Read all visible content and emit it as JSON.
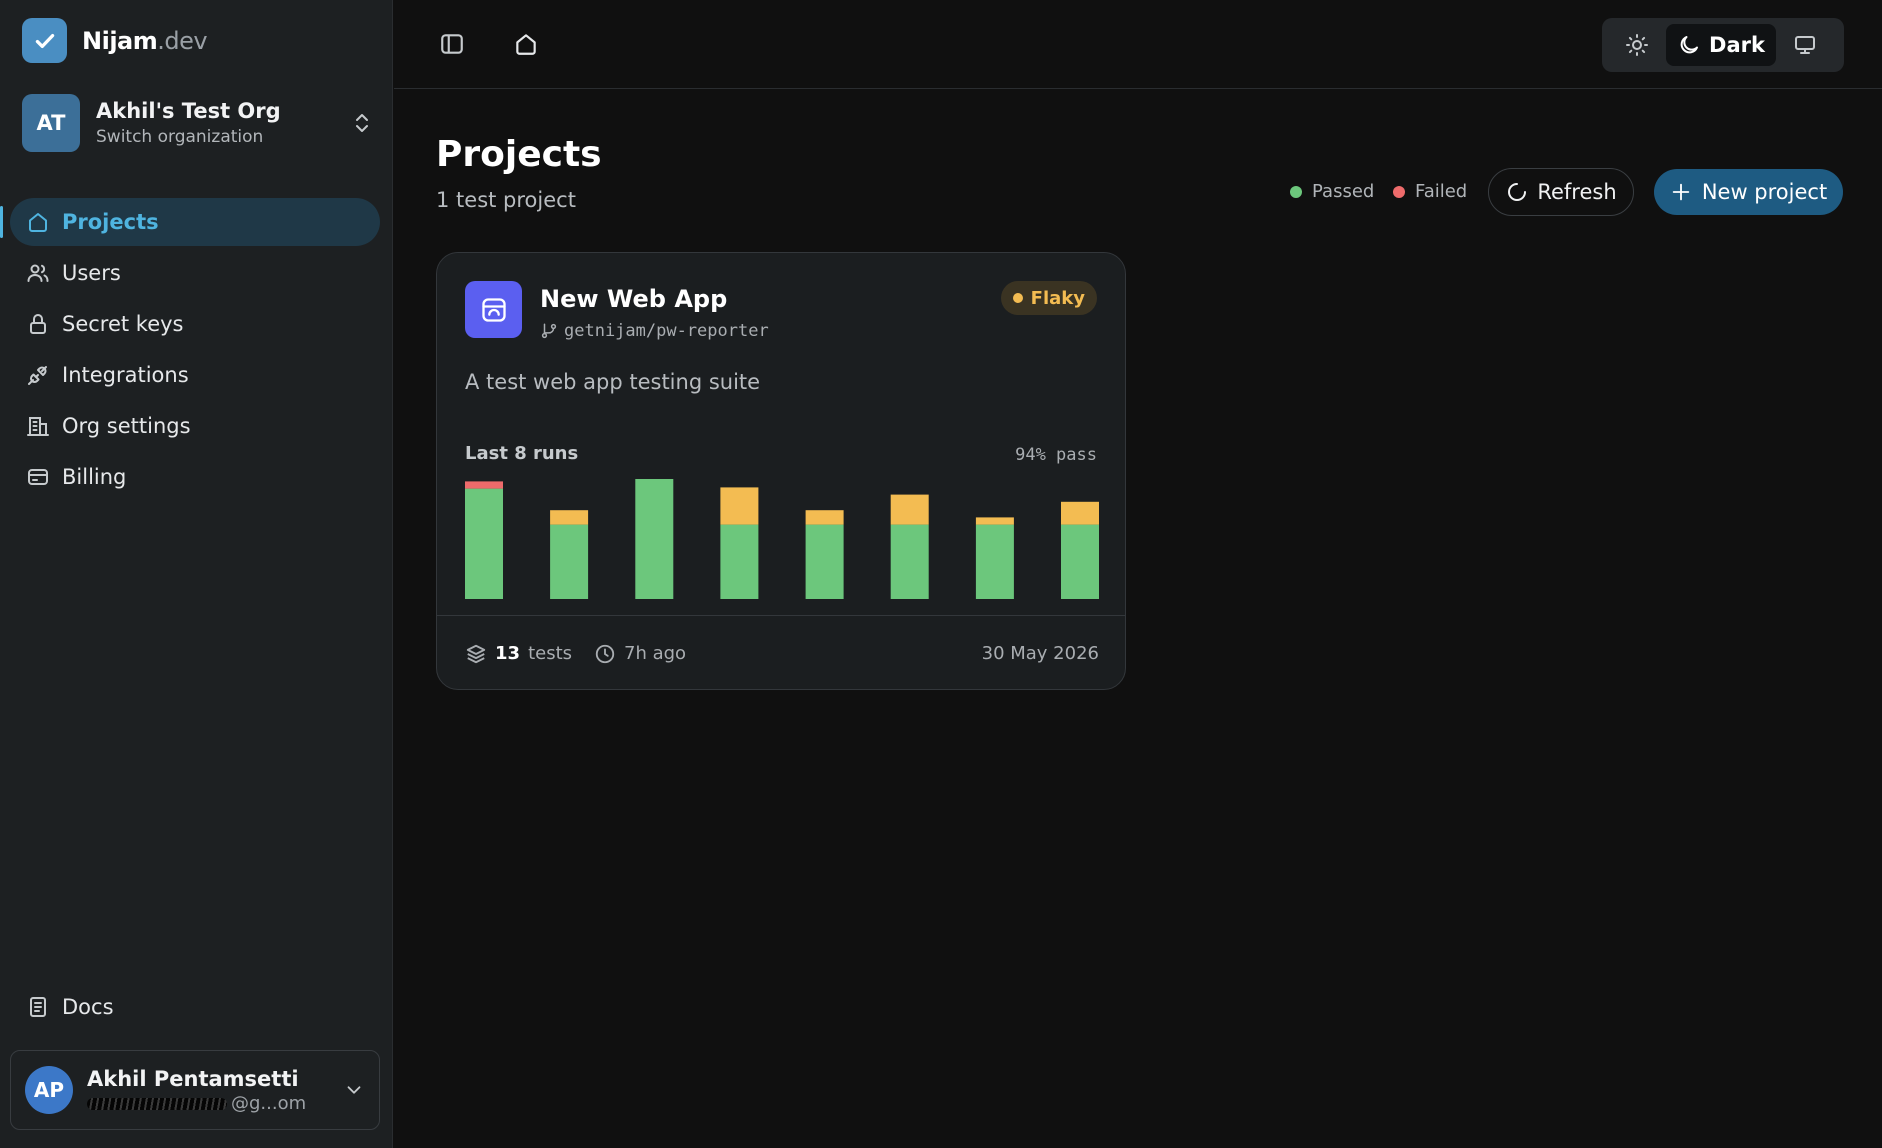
{
  "brand": {
    "name": "Nijam",
    "suffix": ".dev",
    "icon": "check-icon"
  },
  "org": {
    "initials": "AT",
    "name": "Akhil's Test Org",
    "subtitle": "Switch organization"
  },
  "nav": [
    {
      "label": "Projects",
      "icon": "home-icon",
      "active": true
    },
    {
      "label": "Users",
      "icon": "users-icon"
    },
    {
      "label": "Secret keys",
      "icon": "lock-icon"
    },
    {
      "label": "Integrations",
      "icon": "plug-icon"
    },
    {
      "label": "Org settings",
      "icon": "building-icon"
    },
    {
      "label": "Billing",
      "icon": "card-icon"
    }
  ],
  "docs": {
    "label": "Docs",
    "icon": "book-icon"
  },
  "user": {
    "initials": "AP",
    "name": "Akhil Pentamsetti",
    "email_visible": "@g...om"
  },
  "theme": {
    "light": "sun-icon",
    "dark_label": "Dark",
    "system": "monitor-icon",
    "selected": "Dark"
  },
  "page": {
    "title": "Projects",
    "subtitle": "1 test project"
  },
  "legend": [
    {
      "label": "Passed",
      "color": "#6cc77c"
    },
    {
      "label": "Failed",
      "color": "#ee6b6b"
    }
  ],
  "actions": {
    "refresh": "Refresh",
    "new_project": "New project"
  },
  "project": {
    "title": "New Web App",
    "repo": "getnijam/pw-reporter",
    "badge": "Flaky",
    "description": "A test web app testing suite",
    "runs_label": "Last 8 runs",
    "pass_rate": "94% pass",
    "tests_count": "13",
    "tests_label": "tests",
    "last_run": "7h ago",
    "date": "30 May 2026"
  },
  "chart_data": {
    "type": "bar",
    "stacked": true,
    "categories": [
      "1",
      "2",
      "3",
      "4",
      "5",
      "6",
      "7",
      "8"
    ],
    "series": [
      {
        "name": "Passed",
        "color": "#6cc77c",
        "values": [
          92,
          62,
          100,
          62,
          62,
          62,
          62,
          62
        ]
      },
      {
        "name": "Flaky",
        "color": "#f3bc52",
        "values": [
          0,
          12,
          0,
          31,
          12,
          25,
          6,
          19
        ]
      },
      {
        "name": "Failed",
        "color": "#ee6b6b",
        "values": [
          6,
          0,
          0,
          0,
          0,
          0,
          0,
          0
        ]
      }
    ],
    "ylim": [
      0,
      100
    ],
    "grid": false,
    "legend": "none"
  }
}
